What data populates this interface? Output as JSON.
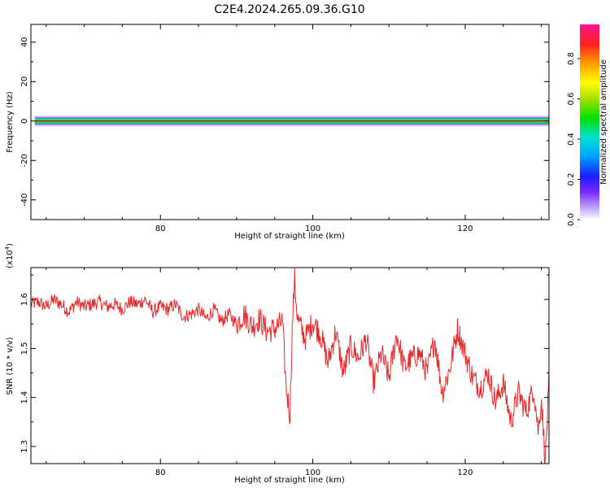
{
  "title": "C2E4.2024.265.09.36.G10",
  "colors": {
    "snr_line": "#e8292b",
    "center_line": "#111111",
    "axis": "#000000"
  },
  "chart_data": [
    {
      "type": "heatmap",
      "name": "spectrogram",
      "xlabel": "Height of straight line (km)",
      "ylabel": "Frequency (Hz)",
      "xlim": [
        63,
        131
      ],
      "ylim": [
        -50,
        49
      ],
      "x_ticks": [
        80,
        100,
        120
      ],
      "x_tick_labels": [
        "80",
        "100",
        "120"
      ],
      "y_ticks": [
        40,
        20,
        0,
        -20,
        -40
      ],
      "y_tick_labels": [
        "40",
        "20",
        "0",
        "-20",
        "-40"
      ],
      "band": {
        "x_start": 63.5,
        "x_end": 131,
        "center_hz": 0.0,
        "core_halfwidth_hz": 1.0,
        "outer_halfwidth_hz": 2.5
      },
      "colorbar": {
        "label": "Normalized spectral amplitude",
        "range": [
          0,
          0.97
        ],
        "ticks": [
          0.0,
          0.2,
          0.4,
          0.6,
          0.8
        ],
        "tick_labels": [
          "0.0",
          "0.2",
          "0.4",
          "0.6",
          "0.8"
        ]
      }
    },
    {
      "type": "line",
      "name": "snr",
      "xlabel": "Height of straight line (km)",
      "ylabel": "SNR (10 * v/v)",
      "y_multiplier": "(x10",
      "y_multiplier_exp": "4",
      "y_multiplier_close": ")",
      "xlim": [
        63,
        131
      ],
      "ylim": [
        12650,
        16650
      ],
      "x_ticks": [
        80,
        100,
        120
      ],
      "x_tick_labels": [
        "80",
        "100",
        "120"
      ],
      "y_ticks": [
        13000,
        14000,
        15000,
        16000
      ],
      "y_tick_labels": [
        "1.3",
        "1.4",
        "1.5",
        "1.6"
      ],
      "x": [
        63,
        64,
        65,
        66,
        67,
        68,
        69,
        70,
        71,
        72,
        73,
        74,
        75,
        76,
        77,
        78,
        79,
        80,
        81,
        82,
        83,
        84,
        85,
        86,
        87,
        88,
        89,
        90,
        91,
        92,
        93,
        94,
        95,
        96,
        96.5,
        97,
        97.3,
        97.6,
        98,
        99,
        100,
        101,
        102,
        103,
        104,
        105,
        106,
        107,
        108,
        109,
        110,
        111,
        112,
        113,
        114,
        115,
        116,
        117,
        118,
        119,
        120,
        121,
        122,
        123,
        124,
        125,
        126,
        127,
        128,
        129,
        129.6,
        130,
        130.5,
        131
      ],
      "values": [
        15900,
        15950,
        15850,
        16000,
        15900,
        15750,
        15950,
        15850,
        15900,
        15950,
        15850,
        15900,
        15800,
        15950,
        15900,
        16000,
        15750,
        15850,
        15800,
        15900,
        15650,
        15700,
        15800,
        15600,
        15800,
        15550,
        15700,
        15500,
        15700,
        15450,
        15600,
        15350,
        15400,
        15550,
        14200,
        13650,
        15400,
        16400,
        15600,
        15200,
        15550,
        15300,
        14700,
        15350,
        14500,
        15050,
        14800,
        15200,
        14300,
        14900,
        14400,
        15300,
        14600,
        14800,
        14900,
        14500,
        15200,
        14100,
        14600,
        15400,
        14900,
        14400,
        14200,
        14500,
        13900,
        14300,
        13500,
        14100,
        13700,
        14200,
        13300,
        14000,
        12700,
        14300
      ]
    }
  ]
}
